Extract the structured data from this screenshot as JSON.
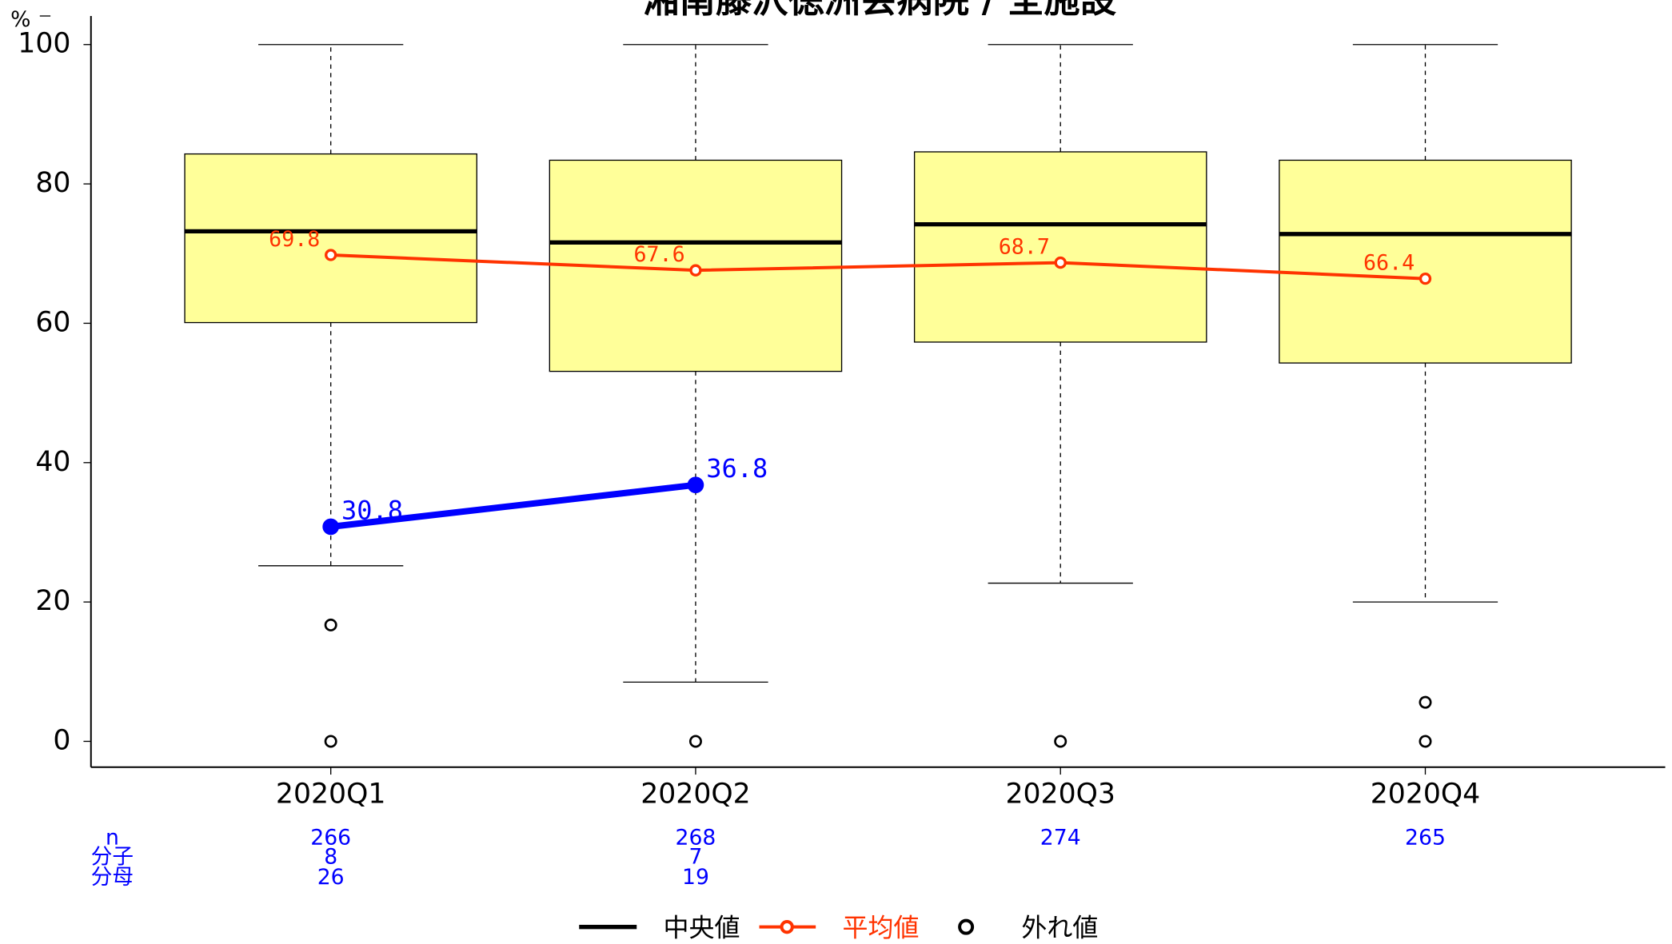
{
  "chart_data": {
    "type": "box",
    "title": "湘南藤沢徳洲会病院 / 全施設",
    "y_label": "%",
    "categories": [
      "2020Q1",
      "2020Q2",
      "2020Q3",
      "2020Q4"
    ],
    "ylim": [
      -3.7,
      104.1
    ],
    "yticks": [
      0,
      20,
      40,
      60,
      80,
      100
    ],
    "box_color": "#ffff99",
    "boxes": [
      {
        "low": 25.2,
        "q1": 60.1,
        "median": 73.2,
        "q3": 84.3,
        "high": 100,
        "outliers": [
          16.7,
          0
        ]
      },
      {
        "low": 8.5,
        "q1": 53.1,
        "median": 71.6,
        "q3": 83.4,
        "high": 100,
        "outliers": [
          0
        ]
      },
      {
        "low": 22.7,
        "q1": 57.3,
        "median": 74.2,
        "q3": 84.6,
        "high": 100,
        "outliers": [
          0
        ]
      },
      {
        "low": 20.0,
        "q1": 54.3,
        "median": 72.8,
        "q3": 83.4,
        "high": 100,
        "outliers": [
          5.6,
          0
        ]
      }
    ],
    "median_name": "中央値",
    "outlier_name": "外れ値",
    "mean": {
      "name": "平均値",
      "color": "#ff3300",
      "values": [
        69.8,
        67.6,
        68.7,
        66.4
      ]
    },
    "hospital": {
      "color": "#0000ff",
      "values": [
        30.8,
        36.8,
        null,
        null
      ]
    },
    "table": {
      "row_labels": [
        "n",
        "分子",
        "分母"
      ],
      "rows": [
        [
          266,
          268,
          274,
          265
        ],
        [
          8,
          7,
          null,
          null
        ],
        [
          26,
          19,
          null,
          null
        ]
      ]
    }
  }
}
